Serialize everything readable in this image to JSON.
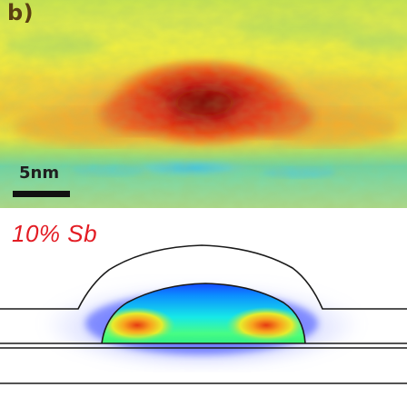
{
  "panel": {
    "label": "b)"
  },
  "micrograph": {
    "scale_bar": {
      "label": "5nm"
    },
    "colormap": "jet"
  },
  "simulation": {
    "composition_label": "10% Sb",
    "label_color": "#e31c24",
    "colormap": "jet"
  }
}
